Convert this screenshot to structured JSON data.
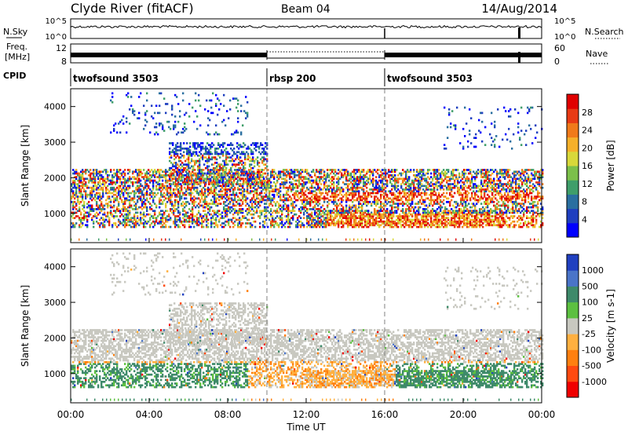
{
  "header": {
    "station": "Clyde River (fitACF)",
    "beam": "Beam 04",
    "date": "14/Aug/2014"
  },
  "strip_labels": {
    "nsky": "N.Sky",
    "nsearch": "N.Search",
    "freq_line1": "Freq.",
    "freq_line2": "[MHz]",
    "nave": "Nave",
    "cpid": "CPID"
  },
  "strip_ticks": {
    "noise_left_top": "10^5",
    "noise_left_bottom": "10^0",
    "noise_right_top": "10^5",
    "noise_right_bottom": "10^0",
    "freq_left_top": "12",
    "freq_left_bottom": "8",
    "nave_right_top": "60",
    "nave_right_bottom": "0"
  },
  "cpid_segments": [
    {
      "label": "twofsound 3503",
      "start_hour": 0
    },
    {
      "label": "rbsp 200",
      "start_hour": 10
    },
    {
      "label": "twofsound 3503",
      "start_hour": 16
    }
  ],
  "chart_data": [
    {
      "type": "heatmap",
      "name": "power",
      "ylabel": "Slant Range [km]",
      "xlabel": "Time UT",
      "x_range_hours": [
        0,
        24
      ],
      "ylim": [
        180,
        4500
      ],
      "yticks": [
        "1000",
        "2000",
        "3000",
        "4000"
      ],
      "colorbar_label": "Power [dB]",
      "colorbar_ticks": [
        "4",
        "8",
        "12",
        "16",
        "20",
        "24",
        "28"
      ],
      "colorbar_range": [
        0,
        30
      ],
      "colorbar_colors": [
        "#0000ff",
        "#1f3fbf",
        "#2a6fa0",
        "#3f9e6a",
        "#7cc04a",
        "#d8d83a",
        "#f5b02a",
        "#f07a1a",
        "#e83a14",
        "#e00000"
      ]
    },
    {
      "type": "heatmap",
      "name": "velocity",
      "ylabel": "Slant Range [km]",
      "xlabel": "Time UT",
      "x_range_hours": [
        0,
        24
      ],
      "ylim": [
        180,
        4500
      ],
      "yticks": [
        "1000",
        "2000",
        "3000",
        "4000"
      ],
      "colorbar_label": "Velocity [m s-1]",
      "colorbar_ticks": [
        "1000",
        "500",
        "100",
        "25",
        "-25",
        "-100",
        "-500",
        "-1000"
      ],
      "colorbar_colors": [
        "#2040c0",
        "#4a74c8",
        "#3e8a6a",
        "#5cc040",
        "#c8c8c0",
        "#ffb040",
        "#ff8010",
        "#ff4a10",
        "#f00000"
      ]
    }
  ],
  "xaxis": {
    "ticks": [
      "00:00",
      "04:00",
      "08:00",
      "12:00",
      "16:00",
      "20:00",
      "00:00"
    ],
    "label": "Time UT"
  },
  "colors": {
    "noise_trace": "#000000",
    "missing_data": "#808080"
  }
}
